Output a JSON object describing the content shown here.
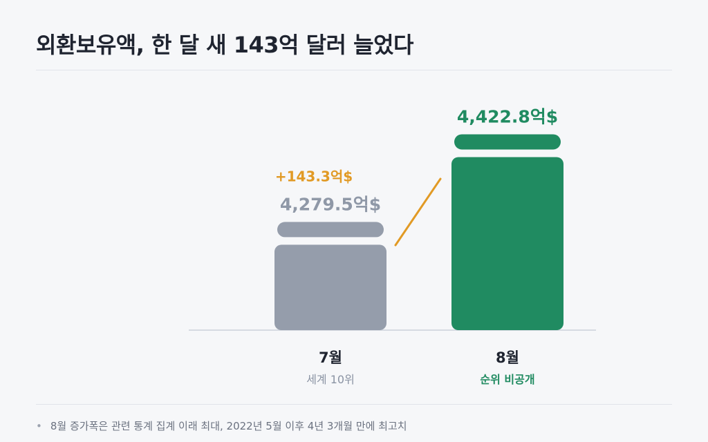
{
  "title": "외환보유액, 한 달 새 143억 달러 늘었다",
  "footnote": "8월 증가폭은 관련 통계 집계 이래 최대, 2022년 5월 이후 4년 3개월 만에 최고치",
  "colors": {
    "july_bar": "#959dab",
    "july_label": "#8f98a7",
    "august_bar": "#208b61",
    "increase": "#e19a25",
    "text_dark": "#1f2430"
  },
  "chart_data": {
    "type": "bar",
    "categories": [
      "7월",
      "8월"
    ],
    "values": [
      4279.5,
      4422.8
    ],
    "value_labels": [
      "4,279.5억$",
      "4,422.8억$"
    ],
    "sub_labels": [
      "세계 10위",
      "순위 비공개"
    ],
    "change_label": "+143.3억$",
    "change": 143.3,
    "title": "외환보유액, 한 달 새 143억 달러 늘었다",
    "xlabel": "",
    "ylabel": "",
    "grid": false
  }
}
